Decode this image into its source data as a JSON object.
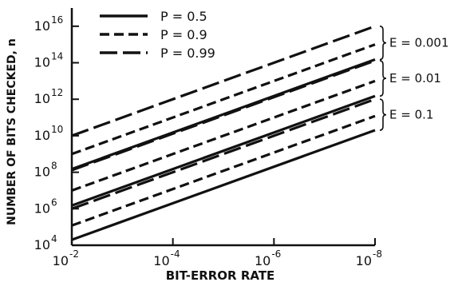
{
  "chart_data": {
    "type": "line",
    "title": "",
    "xlabel": "BIT-ERROR RATE",
    "ylabel": "NUMBER OF BITS CHECKED, n",
    "x_scale": "log",
    "y_scale": "log",
    "x_reversed": true,
    "xlim": [
      0.01,
      1e-08
    ],
    "ylim": [
      10000.0,
      1e+17
    ],
    "x_ticks": [
      {
        "value": 0.01,
        "base": "10",
        "exp": "-2"
      },
      {
        "value": 0.0001,
        "base": "10",
        "exp": "-4"
      },
      {
        "value": 1e-06,
        "base": "10",
        "exp": "-6"
      },
      {
        "value": 1e-08,
        "base": "10",
        "exp": "-8"
      }
    ],
    "y_ticks": [
      {
        "value": 10000.0,
        "base": "10",
        "exp": "4"
      },
      {
        "value": 1000000.0,
        "base": "10",
        "exp": "6"
      },
      {
        "value": 100000000.0,
        "base": "10",
        "exp": "8"
      },
      {
        "value": 10000000000.0,
        "base": "10",
        "exp": "10"
      },
      {
        "value": 1000000000000.0,
        "base": "10",
        "exp": "12"
      },
      {
        "value": 100000000000000.0,
        "base": "10",
        "exp": "14"
      },
      {
        "value": 1e+16,
        "base": "10",
        "exp": "16"
      }
    ],
    "grid": false,
    "legend": {
      "placement": "top-left",
      "entries": [
        {
          "label": "P = 0.5",
          "style": "solid"
        },
        {
          "label": "P = 0.9",
          "style": "short-dash"
        },
        {
          "label": "P = 0.99",
          "style": "long-dash"
        }
      ]
    },
    "groups": [
      {
        "label": "E = 0.001"
      },
      {
        "label": "E = 0.01"
      },
      {
        "label": "E = 0.1"
      }
    ],
    "series": [
      {
        "group": 0,
        "style": "solid",
        "x": [
          0.01,
          1e-08
        ],
        "y": [
          150000000.0,
          150000000000000.0
        ]
      },
      {
        "group": 0,
        "style": "short-dash",
        "x": [
          0.01,
          1e-08
        ],
        "y": [
          1000000000.0,
          1000000000000000.0
        ]
      },
      {
        "group": 0,
        "style": "long-dash",
        "x": [
          0.01,
          1e-08
        ],
        "y": [
          10000000000.0,
          1e+16
        ]
      },
      {
        "group": 1,
        "style": "solid",
        "x": [
          0.01,
          1e-08
        ],
        "y": [
          1500000.0,
          1500000000000.0
        ]
      },
      {
        "group": 1,
        "style": "short-dash",
        "x": [
          0.01,
          1e-08
        ],
        "y": [
          10000000.0,
          10000000000000.0
        ]
      },
      {
        "group": 1,
        "style": "long-dash",
        "x": [
          0.01,
          1e-08
        ],
        "y": [
          130000000.0,
          130000000000000.0
        ]
      },
      {
        "group": 2,
        "style": "solid",
        "x": [
          0.01,
          1e-08
        ],
        "y": [
          20000.0,
          20000000000.0
        ]
      },
      {
        "group": 2,
        "style": "short-dash",
        "x": [
          0.01,
          1e-08
        ],
        "y": [
          120000.0,
          120000000000.0
        ]
      },
      {
        "group": 2,
        "style": "long-dash",
        "x": [
          0.01,
          1e-08
        ],
        "y": [
          1000000.0,
          1000000000000.0
        ]
      }
    ]
  }
}
